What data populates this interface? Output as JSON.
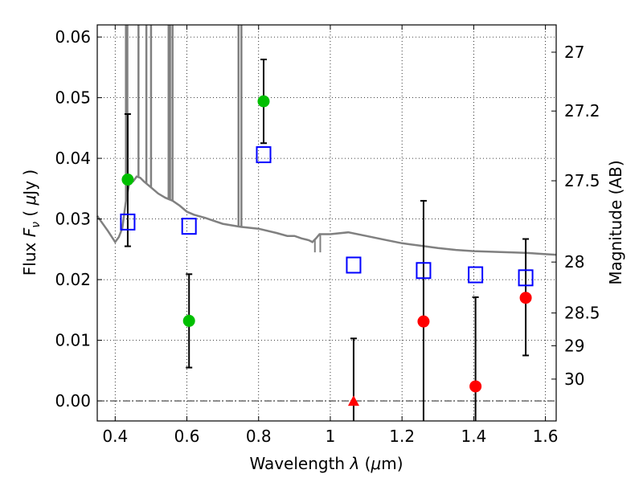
{
  "chart_data": {
    "type": "scatter",
    "xlabel": "Wavelength  λ (μm)",
    "ylabel": "Flux  F_ν  ( μJy )",
    "ylabel_parts": {
      "pre": "Flux ",
      "var": "F",
      "sub": "ν",
      "post1": "  ( ",
      "mu": "μ",
      "post2": "Jy )"
    },
    "xlabel_parts": {
      "pre": "Wavelength  ",
      "lam": "λ",
      "open": " (",
      "mu": "μ",
      "close": "m)"
    },
    "y2label": "Magnitude (AB)",
    "xlim": [
      0.35,
      1.63
    ],
    "ylim": [
      -0.0033,
      0.062
    ],
    "grid": true,
    "x_ticks": [
      0.4,
      0.6,
      0.8,
      1.0,
      1.2,
      1.4,
      1.6
    ],
    "x_tick_labels": [
      "0.4",
      "0.6",
      "0.8",
      "1",
      "1.2",
      "1.4",
      "1.6"
    ],
    "y_ticks": [
      0.0,
      0.01,
      0.02,
      0.03,
      0.04,
      0.05,
      0.06
    ],
    "y_tick_labels": [
      "0.00",
      "0.01",
      "0.02",
      "0.03",
      "0.04",
      "0.05",
      "0.06"
    ],
    "y2_ticks": [
      {
        "label": "27",
        "flux": 0.0575
      },
      {
        "label": "27.2",
        "flux": 0.0478
      },
      {
        "label": "27.5",
        "flux": 0.0363
      },
      {
        "label": "28",
        "flux": 0.0229
      },
      {
        "label": "28.5",
        "flux": 0.0145
      },
      {
        "label": "29",
        "flux": 0.0091
      },
      {
        "label": "30",
        "flux": 0.0036
      }
    ],
    "colors": {
      "green": "#00bf00",
      "red": "#ff0000",
      "blue": "#0000ff",
      "model": "#808080",
      "errorbar": "#000000"
    },
    "series": [
      {
        "marker": "circle",
        "color": "#00bf00",
        "points": [
          {
            "x": 0.435,
            "y": 0.0365,
            "yerr_low": 0.0255,
            "yerr_high": 0.0473
          },
          {
            "x": 0.606,
            "y": 0.0132,
            "yerr_low": 0.0055,
            "yerr_high": 0.0209
          },
          {
            "x": 0.814,
            "y": 0.0494,
            "yerr_low": 0.0425,
            "yerr_high": 0.0563
          }
        ]
      },
      {
        "marker": "circle",
        "color": "#ff0000",
        "points": [
          {
            "x": 1.26,
            "y": 0.0131,
            "yerr_low": -0.0033,
            "yerr_high": 0.033
          },
          {
            "x": 1.405,
            "y": 0.0024,
            "yerr_low": -0.0033,
            "yerr_high": 0.0171
          },
          {
            "x": 1.545,
            "y": 0.017,
            "yerr_low": 0.0075,
            "yerr_high": 0.0267
          }
        ]
      },
      {
        "marker": "triangle",
        "color": "#ff0000",
        "points": [
          {
            "x": 1.065,
            "y": 0.0,
            "yerr_low": -0.0033,
            "yerr_high": 0.0103
          }
        ]
      },
      {
        "marker": "open-square",
        "color": "#0000ff",
        "points": [
          {
            "x": 0.435,
            "y": 0.0295
          },
          {
            "x": 0.606,
            "y": 0.0288
          },
          {
            "x": 0.814,
            "y": 0.0406
          },
          {
            "x": 1.065,
            "y": 0.0224
          },
          {
            "x": 1.26,
            "y": 0.0215
          },
          {
            "x": 1.405,
            "y": 0.0208
          },
          {
            "x": 1.545,
            "y": 0.0203
          }
        ]
      }
    ],
    "model_spectrum": {
      "color": "#808080",
      "points": [
        [
          0.35,
          0.0305
        ],
        [
          0.38,
          0.028
        ],
        [
          0.4,
          0.0262
        ],
        [
          0.41,
          0.027
        ],
        [
          0.42,
          0.0285
        ],
        [
          0.43,
          0.033
        ],
        [
          0.44,
          0.036
        ],
        [
          0.45,
          0.0362
        ],
        [
          0.46,
          0.037
        ],
        [
          0.47,
          0.0368
        ],
        [
          0.48,
          0.0362
        ],
        [
          0.5,
          0.0352
        ],
        [
          0.52,
          0.0342
        ],
        [
          0.54,
          0.0335
        ],
        [
          0.56,
          0.033
        ],
        [
          0.58,
          0.0322
        ],
        [
          0.6,
          0.0312
        ],
        [
          0.62,
          0.0307
        ],
        [
          0.65,
          0.0302
        ],
        [
          0.7,
          0.0292
        ],
        [
          0.75,
          0.0287
        ],
        [
          0.8,
          0.0284
        ],
        [
          0.85,
          0.0277
        ],
        [
          0.88,
          0.0272
        ],
        [
          0.9,
          0.0272
        ],
        [
          0.92,
          0.0268
        ],
        [
          0.94,
          0.0265
        ],
        [
          0.95,
          0.0262
        ],
        [
          0.96,
          0.0268
        ],
        [
          0.97,
          0.0275
        ],
        [
          1.0,
          0.0275
        ],
        [
          1.05,
          0.0278
        ],
        [
          1.1,
          0.0272
        ],
        [
          1.15,
          0.0266
        ],
        [
          1.2,
          0.026
        ],
        [
          1.25,
          0.0256
        ],
        [
          1.3,
          0.0252
        ],
        [
          1.35,
          0.0249
        ],
        [
          1.4,
          0.0247
        ],
        [
          1.45,
          0.0246
        ],
        [
          1.5,
          0.0245
        ],
        [
          1.55,
          0.0244
        ],
        [
          1.6,
          0.0242
        ],
        [
          1.63,
          0.0241
        ]
      ],
      "emission_lines": [
        {
          "x": 0.43,
          "peak": 0.062
        },
        {
          "x": 0.434,
          "peak": 0.062
        },
        {
          "x": 0.465,
          "peak": 0.062
        },
        {
          "x": 0.487,
          "peak": 0.062
        },
        {
          "x": 0.5,
          "peak": 0.062
        },
        {
          "x": 0.549,
          "peak": 0.062
        },
        {
          "x": 0.553,
          "peak": 0.062
        },
        {
          "x": 0.56,
          "peak": 0.062
        },
        {
          "x": 0.744,
          "peak": 0.062
        },
        {
          "x": 0.752,
          "peak": 0.062
        }
      ],
      "absorption_dips": [
        {
          "x": 0.957,
          "dip": 0.0245
        },
        {
          "x": 0.972,
          "dip": 0.0245
        }
      ]
    }
  }
}
